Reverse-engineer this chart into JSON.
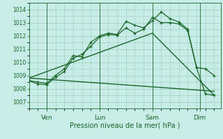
{
  "background_color": "#c8ede8",
  "grid_color": "#99ccbb",
  "line_color": "#1a6628",
  "xlabel": "Pression niveau de la mer( hPa )",
  "ylim": [
    1006.5,
    1014.5
  ],
  "yticks": [
    1007,
    1008,
    1009,
    1010,
    1011,
    1012,
    1013,
    1014
  ],
  "day_labels": [
    "Ven",
    "Lun",
    "Sam",
    "Dim"
  ],
  "day_positions": [
    16,
    64,
    112,
    155
  ],
  "xlim": [
    0,
    174
  ],
  "series1_x": [
    0,
    8,
    16,
    24,
    32,
    40,
    48,
    56,
    64,
    72,
    80,
    88,
    96,
    104,
    112,
    120,
    128,
    136,
    144,
    152,
    160,
    168
  ],
  "series1_y": [
    1008.6,
    1008.5,
    1008.4,
    1009.0,
    1009.5,
    1010.5,
    1010.4,
    1011.5,
    1012.0,
    1012.2,
    1012.1,
    1013.1,
    1012.8,
    1012.6,
    1013.15,
    1013.8,
    1013.3,
    1013.05,
    1012.5,
    1009.6,
    1009.5,
    1009.0
  ],
  "series2_x": [
    0,
    8,
    16,
    24,
    32,
    40,
    48,
    56,
    64,
    72,
    80,
    88,
    96,
    104,
    112,
    120,
    128,
    136,
    144,
    152,
    160,
    168
  ],
  "series2_y": [
    1008.6,
    1008.35,
    1008.3,
    1008.85,
    1009.3,
    1010.3,
    1010.6,
    1011.2,
    1011.9,
    1012.1,
    1012.05,
    1012.6,
    1012.2,
    1012.5,
    1013.4,
    1013.0,
    1013.0,
    1012.9,
    1012.4,
    1009.6,
    1007.6,
    1007.5
  ],
  "trend1_x": [
    0,
    112,
    168
  ],
  "trend1_y": [
    1008.8,
    1012.2,
    1007.5
  ],
  "trend2_x": [
    0,
    168
  ],
  "trend2_y": [
    1008.8,
    1007.8
  ]
}
